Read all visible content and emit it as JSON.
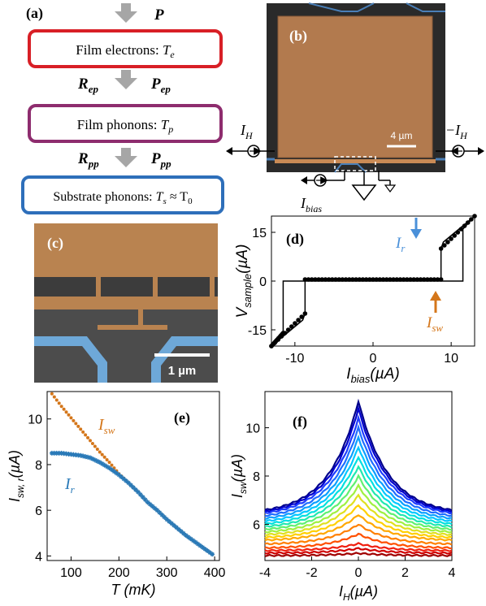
{
  "panels": {
    "a": {
      "label": "(a)",
      "power_in": "P",
      "boxes": [
        {
          "text": "Film electrons: ",
          "sym": "T",
          "sub": "e",
          "color": "#d81f26"
        },
        {
          "text": "Film phonons: ",
          "sym": "T",
          "sub": "p",
          "color": "#8e2c6e"
        },
        {
          "text": "Substrate phonons: ",
          "sym": "T",
          "sub": "s",
          "tail": " ≈ T",
          "tail_sub": "0",
          "color": "#2e6fba"
        }
      ],
      "links": [
        {
          "R": "R",
          "R_sub": "ep",
          "P": "P",
          "P_sub": "ep"
        },
        {
          "R": "R",
          "R_sub": "pp",
          "P": "P",
          "P_sub": "pp"
        }
      ]
    },
    "b": {
      "label": "(b)",
      "scalebar": "4 µm",
      "left_current": "I",
      "left_current_sub": "H",
      "right_current": "−I",
      "right_current_sub": "H",
      "bias_current": "I",
      "bias_current_sub": "bias"
    },
    "c": {
      "label": "(c)",
      "scalebar": "1 µm"
    },
    "d": {
      "label": "(d)",
      "ylabel_main": "V",
      "ylabel_sub": "sample",
      "ylabel_unit": "(µA)",
      "xlabel_main": "I",
      "xlabel_sub": "bias",
      "xlabel_unit": "(µA)",
      "xticks": [
        "-10",
        "0",
        "10"
      ],
      "yticks": [
        "15",
        "0",
        "-15"
      ],
      "ann_r": "I",
      "ann_r_sub": "r",
      "ann_sw": "I",
      "ann_sw_sub": "sw",
      "color_r": "#4a90d9",
      "color_sw": "#d4761a"
    },
    "e": {
      "label": "(e)",
      "ylabel_main": "I",
      "ylabel_sub": "sw, r",
      "ylabel_unit": "(µA)",
      "xlabel": "T (mK)",
      "xticks": [
        "100",
        "200",
        "300",
        "400"
      ],
      "yticks": [
        "10",
        "8",
        "6",
        "4"
      ],
      "ann_sw": "I",
      "ann_sw_sub": "sw",
      "ann_r": "I",
      "ann_r_sub": "r",
      "color_sw": "#d4761a",
      "color_r": "#2a7ab8"
    },
    "f": {
      "label": "(f)",
      "ylabel_main": "I",
      "ylabel_sub": "sw",
      "ylabel_unit": "(µA)",
      "xlabel_main": "I",
      "xlabel_sub": "H",
      "xlabel_unit": "(µA)",
      "xticks": [
        "-4",
        "-2",
        "0",
        "2",
        "4"
      ],
      "yticks": [
        "10",
        "8",
        "6"
      ]
    }
  },
  "chart_data": [
    {
      "type": "line",
      "panel": "d",
      "x_range": [
        -13,
        13
      ],
      "y_range": [
        -20,
        20
      ],
      "series": [
        {
          "x": [
            -13,
            -12,
            -11,
            -10,
            -9.5,
            -9,
            -8.7,
            -8.7,
            -5,
            0,
            5,
            8.7,
            8.7,
            9,
            10,
            11,
            12,
            13
          ],
          "y": [
            -20,
            -18,
            -16,
            -14,
            -13,
            -12,
            -10,
            0.5,
            0.5,
            0.5,
            0.5,
            0.5,
            10,
            12,
            14,
            16,
            18,
            20
          ]
        },
        {
          "x": [
            -13,
            -11.5,
            -11.5,
            -8,
            -4,
            0,
            4,
            8,
            11.5,
            11.5,
            13
          ],
          "y": [
            -20,
            -16,
            0,
            0,
            0,
            0,
            0,
            0,
            0,
            16,
            20
          ]
        }
      ]
    },
    {
      "type": "scatter",
      "panel": "e",
      "x_range": [
        50,
        410
      ],
      "y_range": [
        3.8,
        11.2
      ],
      "series": [
        {
          "name": "I_sw",
          "x": [
            60,
            80,
            100,
            120,
            140,
            160,
            180,
            200,
            220,
            240,
            260,
            280,
            300,
            320,
            340,
            360,
            380,
            400
          ],
          "y": [
            11.1,
            10.55,
            10.05,
            9.55,
            9.05,
            8.55,
            8.1,
            7.6,
            7.2,
            6.8,
            6.35,
            6.0,
            5.6,
            5.25,
            4.9,
            4.6,
            4.3,
            4.0
          ]
        },
        {
          "name": "I_r",
          "x": [
            60,
            80,
            100,
            120,
            140,
            160,
            180,
            200,
            220,
            240,
            260,
            280,
            300,
            320,
            340,
            360,
            380,
            400
          ],
          "y": [
            8.5,
            8.5,
            8.45,
            8.4,
            8.3,
            8.1,
            7.85,
            7.55,
            7.2,
            6.8,
            6.35,
            6.0,
            5.6,
            5.25,
            4.9,
            4.6,
            4.3,
            4.0
          ]
        }
      ]
    },
    {
      "type": "line",
      "panel": "f",
      "x_range": [
        -4,
        4
      ],
      "y_range": [
        4.5,
        11.5
      ],
      "peaks": [
        11.1,
        10.8,
        10.4,
        10.0,
        9.6,
        9.2,
        8.8,
        8.4,
        8.0,
        7.6,
        7.2,
        6.8,
        6.4,
        6.0,
        5.6,
        5.2,
        5.0,
        4.8
      ],
      "wings": [
        6.4,
        6.35,
        6.3,
        6.2,
        6.1,
        6.0,
        5.9,
        5.8,
        5.7,
        5.6,
        5.5,
        5.4,
        5.3,
        5.15,
        5.0,
        4.9,
        4.8,
        4.7
      ],
      "colors": [
        "#00008b",
        "#0000cd",
        "#1e3cff",
        "#1e6eff",
        "#0aa0ff",
        "#00c8ff",
        "#00e0e0",
        "#20e8b0",
        "#60f070",
        "#a0f040",
        "#e0e020",
        "#ffd000",
        "#ffa800",
        "#ff8000",
        "#ff5000",
        "#f02010",
        "#d00000",
        "#a00000"
      ]
    }
  ]
}
